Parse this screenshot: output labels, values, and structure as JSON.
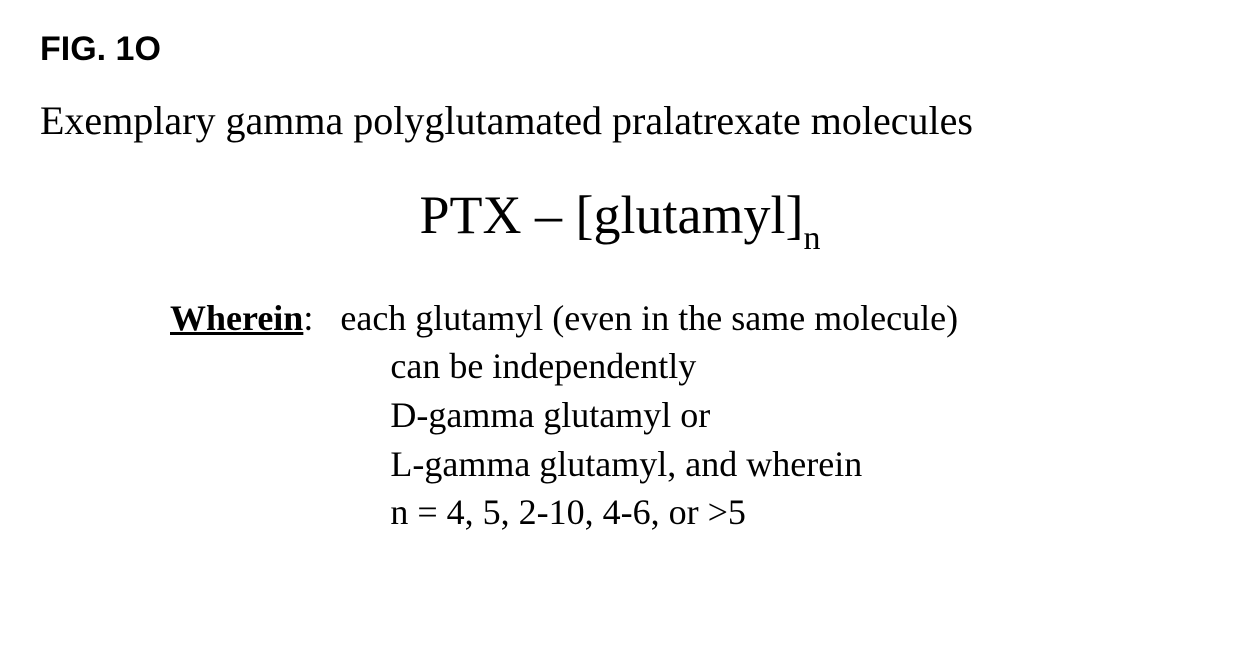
{
  "figure": {
    "label": "FIG. 1O",
    "subtitle": "Exemplary gamma polyglutamated pralatrexate molecules",
    "formula_prefix": "PTX – [glutamyl]",
    "formula_subscript": "n",
    "wherein_label": "Wherein",
    "wherein_colon": ":   ",
    "lines": {
      "l1": "each glutamyl (even in the same molecule)",
      "l2": "can be independently",
      "l3": "D-gamma glutamyl or",
      "l4": "L-gamma glutamyl, and wherein",
      "l5": "n = 4, 5, 2-10, 4-6, or >5"
    }
  },
  "style": {
    "background_color": "#ffffff",
    "text_color": "#000000",
    "fig_label_fontsize": 34,
    "subtitle_fontsize": 40,
    "formula_fontsize": 54,
    "subscript_fontsize": 34,
    "body_fontsize": 36,
    "fig_label_font": "Arial",
    "body_font": "Times New Roman"
  }
}
